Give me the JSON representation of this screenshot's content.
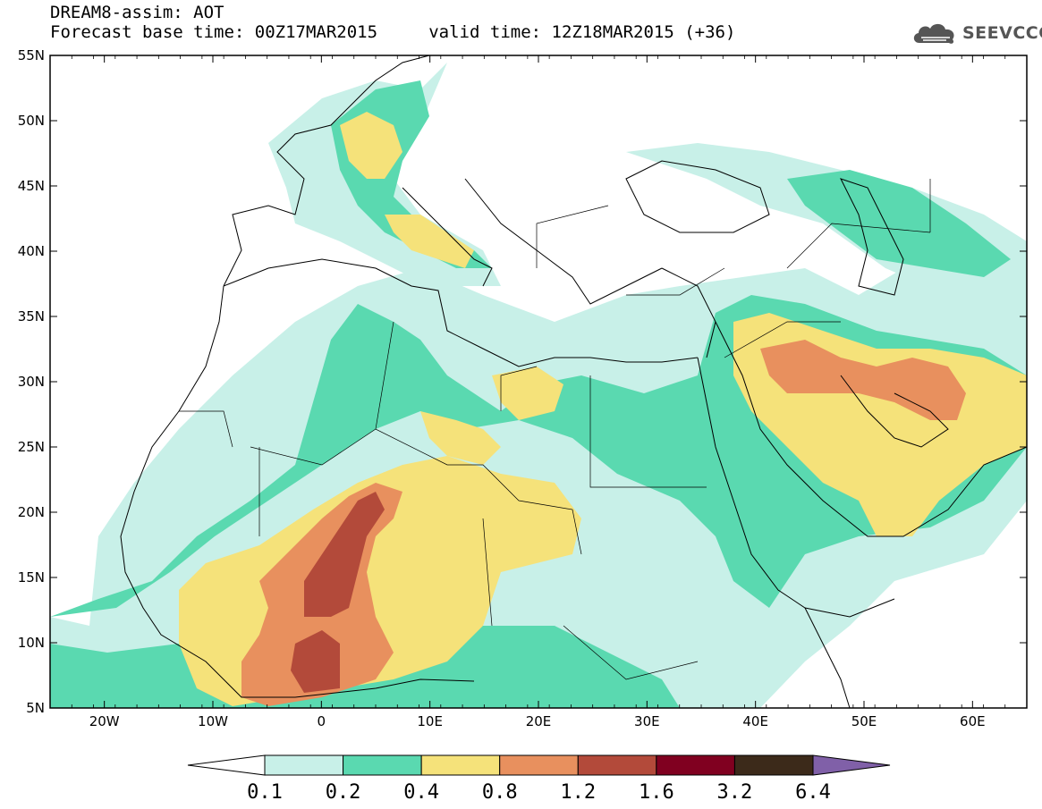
{
  "header": {
    "title_line1": "DREAM8-assim: AOT",
    "title_line2": "Forecast base time: 00Z17MAR2015     valid time: 12Z18MAR2015 (+36)"
  },
  "logo": {
    "text": "SEEVCCC",
    "icon": "cloud-icon",
    "color": "#555555"
  },
  "map": {
    "region": {
      "lon_min": -25,
      "lon_max": 65,
      "lat_min": 5,
      "lat_max": 55
    },
    "lat_ticks": [
      {
        "lat": 55,
        "label": "55N"
      },
      {
        "lat": 50,
        "label": "50N"
      },
      {
        "lat": 45,
        "label": "45N"
      },
      {
        "lat": 40,
        "label": "40N"
      },
      {
        "lat": 35,
        "label": "35N"
      },
      {
        "lat": 30,
        "label": "30N"
      },
      {
        "lat": 25,
        "label": "25N"
      },
      {
        "lat": 20,
        "label": "20N"
      },
      {
        "lat": 15,
        "label": "15N"
      },
      {
        "lat": 10,
        "label": "10N"
      },
      {
        "lat": 5,
        "label": "5N"
      }
    ],
    "lon_ticks": [
      {
        "lon": -20,
        "label": "20W"
      },
      {
        "lon": -10,
        "label": "10W"
      },
      {
        "lon": 0,
        "label": "0"
      },
      {
        "lon": 10,
        "label": "10E"
      },
      {
        "lon": 20,
        "label": "20E"
      },
      {
        "lon": 30,
        "label": "30E"
      },
      {
        "lon": 40,
        "label": "40E"
      },
      {
        "lon": 50,
        "label": "50E"
      },
      {
        "lon": 60,
        "label": "60E"
      }
    ]
  },
  "colorbar": {
    "colors": [
      "#ffffff",
      "#c8f0e8",
      "#5ad9b0",
      "#f5e27a",
      "#e8905e",
      "#b34a3a",
      "#800020",
      "#3c2a1a",
      "#8060a8"
    ],
    "labels": [
      "0.1",
      "0.2",
      "0.4",
      "0.8",
      "1.2",
      "1.6",
      "3.2",
      "6.4"
    ]
  }
}
